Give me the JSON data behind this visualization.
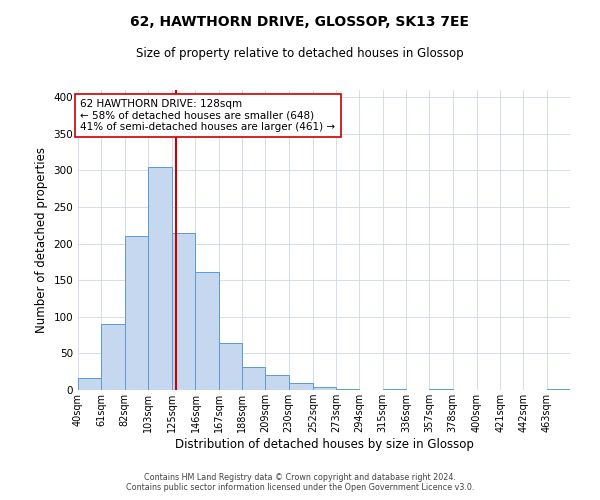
{
  "title": "62, HAWTHORN DRIVE, GLOSSOP, SK13 7EE",
  "subtitle": "Size of property relative to detached houses in Glossop",
  "xlabel": "Distribution of detached houses by size in Glossop",
  "ylabel": "Number of detached properties",
  "bin_labels": [
    "40sqm",
    "61sqm",
    "82sqm",
    "103sqm",
    "125sqm",
    "146sqm",
    "167sqm",
    "188sqm",
    "209sqm",
    "230sqm",
    "252sqm",
    "273sqm",
    "294sqm",
    "315sqm",
    "336sqm",
    "357sqm",
    "378sqm",
    "400sqm",
    "421sqm",
    "442sqm",
    "463sqm"
  ],
  "bin_edges": [
    40,
    61,
    82,
    103,
    125,
    146,
    167,
    188,
    209,
    230,
    252,
    273,
    294,
    315,
    336,
    357,
    378,
    400,
    421,
    442,
    463,
    484
  ],
  "counts": [
    17,
    90,
    211,
    305,
    214,
    161,
    64,
    31,
    20,
    10,
    4,
    1,
    0,
    2,
    0,
    1,
    0,
    0,
    0,
    0,
    2
  ],
  "bar_color": "#c5d8ef",
  "bar_edge_color": "#5b9bd5",
  "property_size": 128,
  "red_line_color": "#cc0000",
  "annotation_line1": "62 HAWTHORN DRIVE: 128sqm",
  "annotation_line2": "← 58% of detached houses are smaller (648)",
  "annotation_line3": "41% of semi-detached houses are larger (461) →",
  "annotation_box_edge": "#cc0000",
  "ylim": [
    0,
    410
  ],
  "yticks": [
    0,
    50,
    100,
    150,
    200,
    250,
    300,
    350,
    400
  ],
  "footer_line1": "Contains HM Land Registry data © Crown copyright and database right 2024.",
  "footer_line2": "Contains public sector information licensed under the Open Government Licence v3.0.",
  "background_color": "#ffffff",
  "grid_color": "#d0d8e8",
  "title_fontsize": 10,
  "subtitle_fontsize": 8.5
}
